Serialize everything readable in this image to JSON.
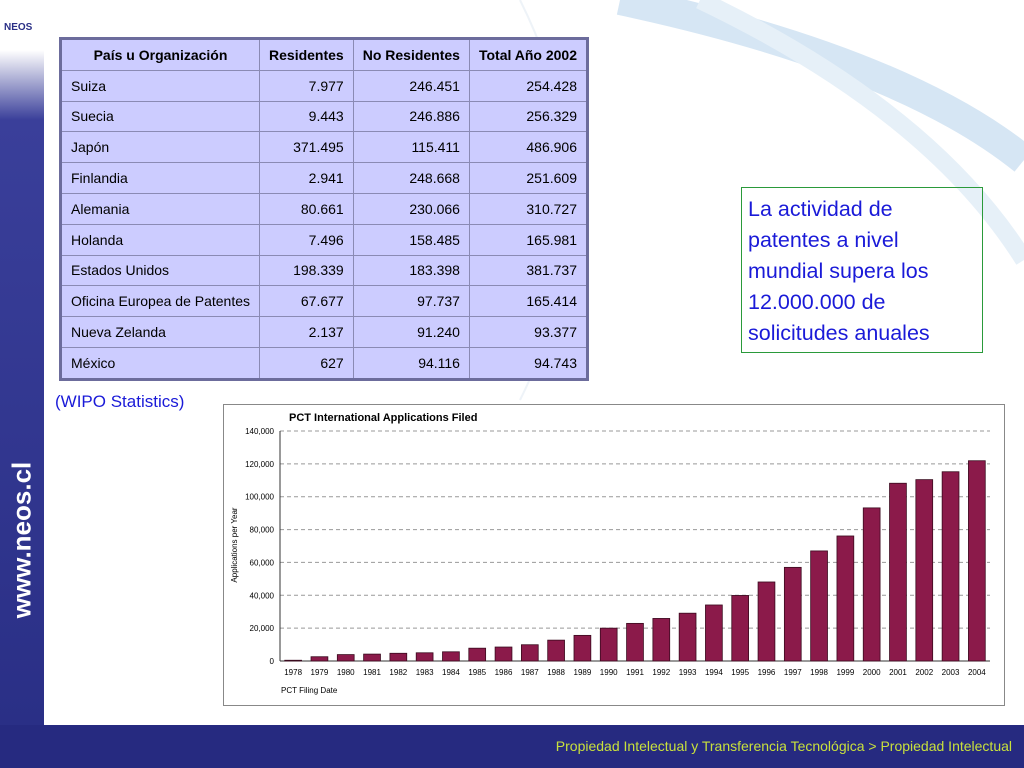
{
  "logo": "NEOS",
  "side_text": "www.neos.cl",
  "table": {
    "header": [
      "País u Organización",
      "Residentes",
      "No Residentes",
      "Total Año 2002"
    ],
    "rows": [
      [
        "Suiza",
        "7.977",
        "246.451",
        "254.428"
      ],
      [
        "Suecia",
        "9.443",
        "246.886",
        "256.329"
      ],
      [
        "Japón",
        "371.495",
        "115.411",
        "486.906"
      ],
      [
        "Finlandia",
        "2.941",
        "248.668",
        "251.609"
      ],
      [
        "Alemania",
        "80.661",
        "230.066",
        "310.727"
      ],
      [
        "Holanda",
        "7.496",
        "158.485",
        "165.981"
      ],
      [
        "Estados Unidos",
        "198.339",
        "183.398",
        "381.737"
      ],
      [
        "Oficina Europea de Patentes",
        "67.677",
        "97.737",
        "165.414"
      ],
      [
        "Nueva Zelanda",
        "2.137",
        "91.240",
        "93.377"
      ],
      [
        "México",
        "627",
        "94.116",
        "94.743"
      ]
    ]
  },
  "note": "La actividad de patentes a nivel mundial supera los 12.000.000 de solicitudes anuales",
  "source": "(WIPO Statistics)",
  "chart_data": {
    "type": "bar",
    "title": "PCT International Applications Filed",
    "y_label": "Applications per Year",
    "x_label": "PCT Filing Date",
    "categories": [
      "1978",
      "1979",
      "1980",
      "1981",
      "1982",
      "1983",
      "1984",
      "1985",
      "1986",
      "1987",
      "1988",
      "1989",
      "1990",
      "1991",
      "1992",
      "1993",
      "1994",
      "1995",
      "1996",
      "1997",
      "1998",
      "1999",
      "2000",
      "2001",
      "2002",
      "2003",
      "2004"
    ],
    "values": [
      460,
      2600,
      3900,
      4200,
      4700,
      5000,
      5600,
      7800,
      8500,
      9900,
      12700,
      15600,
      20000,
      22900,
      25900,
      29100,
      34100,
      39900,
      48100,
      57000,
      67000,
      76100,
      93200,
      108200,
      110400,
      115200,
      121900
    ],
    "color": "#8b1a4a",
    "ylim": [
      0,
      140000
    ],
    "yticks": [
      0,
      {
        "value": 20000,
        "label": "20,000"
      },
      {
        "value": 40000,
        "label": "40,000"
      },
      {
        "value": 60000,
        "label": "60,000"
      },
      {
        "value": 80000,
        "label": "80,000"
      },
      {
        "value": 100000,
        "label": "100,000"
      },
      {
        "value": 120000,
        "label": "120,000"
      },
      {
        "value": 140000,
        "label": "140,000"
      }
    ],
    "grid": true
  },
  "footer": "Propiedad Intelectual y Transferencia Tecnológica > Propiedad Intelectual"
}
